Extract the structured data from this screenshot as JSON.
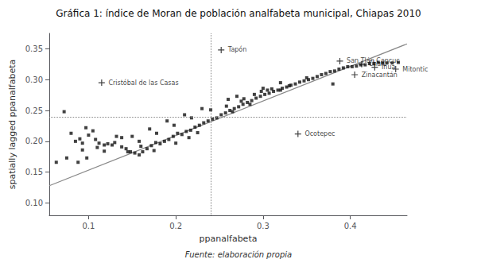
{
  "chart_data": {
    "type": "scatter",
    "title": "Gráfica 1: índice de Moran de población analfabeta municipal, Chiapas 2010",
    "caption": "Fuente: elaboración propia",
    "xlabel": "ppanalfabeta",
    "ylabel": "spatially lagged ppanalfabeta",
    "xlim": [
      0.055,
      0.465
    ],
    "ylim": [
      0.08,
      0.375
    ],
    "xticks": [
      0.1,
      0.2,
      0.3,
      0.4
    ],
    "yticks": [
      {
        "value": 0.1,
        "label": "0.10"
      },
      0.15,
      {
        "value": 0.2,
        "label": "0.20"
      },
      0.25,
      {
        "value": 0.3,
        "label": "0.30"
      },
      0.35
    ],
    "grid": false,
    "reference_lines": {
      "x": 0.237,
      "y": 0.237,
      "color": "#888888",
      "line_style": "dotted"
    },
    "series": [
      {
        "type": "scatter",
        "marker": "square",
        "color": "#111111",
        "points": [
          [
            0.072,
            0.248
          ],
          [
            0.08,
            0.213
          ],
          [
            0.085,
            0.2
          ],
          [
            0.09,
            0.204
          ],
          [
            0.093,
            0.197
          ],
          [
            0.097,
            0.222
          ],
          [
            0.1,
            0.21
          ],
          [
            0.105,
            0.217
          ],
          [
            0.108,
            0.203
          ],
          [
            0.112,
            0.197
          ],
          [
            0.118,
            0.194
          ],
          [
            0.122,
            0.196
          ],
          [
            0.127,
            0.194
          ],
          [
            0.132,
            0.208
          ],
          [
            0.138,
            0.206
          ],
          [
            0.143,
            0.188
          ],
          [
            0.148,
            0.183
          ],
          [
            0.153,
            0.181
          ],
          [
            0.158,
            0.178
          ],
          [
            0.162,
            0.183
          ],
          [
            0.167,
            0.188
          ],
          [
            0.172,
            0.193
          ],
          [
            0.177,
            0.198
          ],
          [
            0.182,
            0.196
          ],
          [
            0.187,
            0.2
          ],
          [
            0.192,
            0.203
          ],
          [
            0.197,
            0.208
          ],
          [
            0.202,
            0.213
          ],
          [
            0.207,
            0.211
          ],
          [
            0.212,
            0.216
          ],
          [
            0.217,
            0.218
          ],
          [
            0.222,
            0.223
          ],
          [
            0.227,
            0.226
          ],
          [
            0.232,
            0.23
          ],
          [
            0.237,
            0.233
          ],
          [
            0.242,
            0.236
          ],
          [
            0.247,
            0.238
          ],
          [
            0.252,
            0.243
          ],
          [
            0.257,
            0.246
          ],
          [
            0.262,
            0.25
          ],
          [
            0.267,
            0.253
          ],
          [
            0.272,
            0.256
          ],
          [
            0.277,
            0.26
          ],
          [
            0.282,
            0.263
          ],
          [
            0.287,
            0.266
          ],
          [
            0.292,
            0.27
          ],
          [
            0.297,
            0.273
          ],
          [
            0.302,
            0.276
          ],
          [
            0.307,
            0.278
          ],
          [
            0.312,
            0.281
          ],
          [
            0.317,
            0.283
          ],
          [
            0.322,
            0.286
          ],
          [
            0.327,
            0.288
          ],
          [
            0.332,
            0.291
          ],
          [
            0.337,
            0.293
          ],
          [
            0.342,
            0.296
          ],
          [
            0.347,
            0.298
          ],
          [
            0.352,
            0.3
          ],
          [
            0.357,
            0.302
          ],
          [
            0.362,
            0.305
          ],
          [
            0.367,
            0.308
          ],
          [
            0.372,
            0.31
          ],
          [
            0.377,
            0.313
          ],
          [
            0.382,
            0.314
          ],
          [
            0.387,
            0.317
          ],
          [
            0.392,
            0.319
          ],
          [
            0.397,
            0.321
          ],
          [
            0.402,
            0.321
          ],
          [
            0.407,
            0.322
          ],
          [
            0.412,
            0.324
          ],
          [
            0.417,
            0.324
          ],
          [
            0.422,
            0.326
          ],
          [
            0.427,
            0.326
          ],
          [
            0.432,
            0.328
          ],
          [
            0.437,
            0.327
          ],
          [
            0.442,
            0.327
          ],
          [
            0.448,
            0.327
          ],
          [
            0.455,
            0.328
          ],
          [
            0.24,
            0.251
          ],
          [
            0.258,
            0.257
          ],
          [
            0.278,
            0.269
          ],
          [
            0.298,
            0.281
          ],
          [
            0.218,
            0.238
          ],
          [
            0.198,
            0.226
          ],
          [
            0.178,
            0.213
          ],
          [
            0.158,
            0.2
          ],
          [
            0.138,
            0.191
          ],
          [
            0.118,
            0.184
          ],
          [
            0.098,
            0.173
          ],
          [
            0.088,
            0.166
          ],
          [
            0.265,
            0.248
          ],
          [
            0.275,
            0.265
          ],
          [
            0.285,
            0.26
          ],
          [
            0.305,
            0.283
          ],
          [
            0.27,
            0.273
          ],
          [
            0.29,
            0.276
          ],
          [
            0.31,
            0.285
          ],
          [
            0.33,
            0.29
          ],
          [
            0.26,
            0.268
          ],
          [
            0.23,
            0.253
          ],
          [
            0.21,
            0.243
          ],
          [
            0.19,
            0.233
          ],
          [
            0.17,
            0.22
          ],
          [
            0.15,
            0.208
          ],
          [
            0.13,
            0.198
          ],
          [
            0.11,
            0.19
          ],
          [
            0.093,
            0.186
          ],
          [
            0.075,
            0.173
          ],
          [
            0.063,
            0.166
          ],
          [
            0.32,
            0.295
          ],
          [
            0.35,
            0.303
          ],
          [
            0.38,
            0.293
          ],
          [
            0.3,
            0.286
          ],
          [
            0.32,
            0.283
          ],
          [
            0.145,
            0.183
          ],
          [
            0.16,
            0.192
          ],
          [
            0.175,
            0.185
          ],
          [
            0.2,
            0.197
          ],
          [
            0.215,
            0.206
          ],
          [
            0.225,
            0.214
          ]
        ]
      },
      {
        "type": "scatter",
        "marker": "plus",
        "color": "#111111",
        "points": [
          [
            0.115,
            0.295
          ],
          [
            0.252,
            0.348
          ],
          [
            0.388,
            0.33
          ],
          [
            0.413,
            0.325
          ],
          [
            0.428,
            0.32
          ],
          [
            0.452,
            0.317
          ],
          [
            0.405,
            0.308
          ],
          [
            0.34,
            0.212
          ]
        ],
        "point_labels": [
          "Cristóbal de las Casas",
          "Tapón",
          "San Tlán Cancuc",
          "Chalú",
          "Ihua",
          "Mitontic",
          "Zinacantán",
          "Ocotepec"
        ]
      },
      {
        "type": "line",
        "color": "#888888",
        "line_style": "solid",
        "points": [
          [
            0.055,
            0.128
          ],
          [
            0.465,
            0.358
          ]
        ]
      }
    ]
  }
}
